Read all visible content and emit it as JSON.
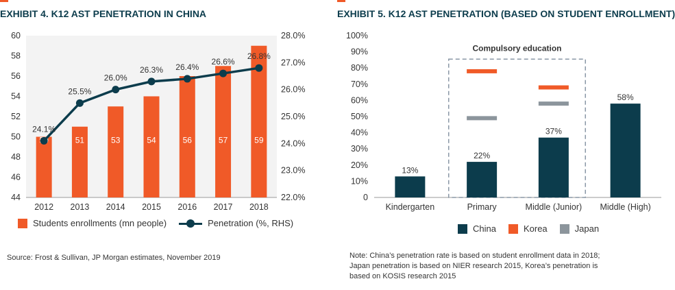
{
  "left": {
    "title": "EXHIBIT 4. K12 AST PENETRATION IN CHINA",
    "source": "Source: Frost & Sullivan, JP Morgan estimates, November 2019",
    "legend": {
      "bars": "Students enrollments (mn people)",
      "line": "Penetration (%, RHS)"
    }
  },
  "right": {
    "title": "EXHIBIT 5. K12 AST PENETRATION (BASED ON STUDENT ENROLLMENT)",
    "annotation": "Compulsory education",
    "legend": {
      "china": "China",
      "korea": "Korea",
      "japan": "Japan"
    },
    "note_lines": [
      "Note: China’s penetration rate is based on student enrollment data in 2018;",
      "Japan penetration is based on NIER research 2015, Korea’s penetration is",
      "based on KOSIS research 2015"
    ]
  },
  "colors": {
    "orange": "#f05a28",
    "navy": "#0c3c4c",
    "gray": "#8c959c",
    "plot_bg": "#f3f3f3",
    "title": "#0c3c4c"
  },
  "chart_data": [
    {
      "type": "bar",
      "combo_line": true,
      "categories": [
        "2012",
        "2013",
        "2014",
        "2015",
        "2016",
        "2017",
        "2018"
      ],
      "series": [
        {
          "name": "Students enrollments (mn people)",
          "axis": "left",
          "type": "bar",
          "values": [
            50,
            51,
            53,
            54,
            56,
            57,
            59
          ],
          "labels": [
            "50",
            "51",
            "53",
            "54",
            "56",
            "57",
            "59"
          ]
        },
        {
          "name": "Penetration (%, RHS)",
          "axis": "right",
          "type": "line",
          "values": [
            24.1,
            25.5,
            26.0,
            26.3,
            26.4,
            26.6,
            26.8
          ],
          "labels": [
            "24.1%",
            "25.5%",
            "26.0%",
            "26.3%",
            "26.4%",
            "26.6%",
            "26.8%"
          ]
        }
      ],
      "ylim_left": [
        44,
        60
      ],
      "yticks_left": [
        "44",
        "46",
        "48",
        "50",
        "52",
        "54",
        "56",
        "58",
        "60"
      ],
      "ylim_right": [
        22.0,
        28.0
      ],
      "yticks_right": [
        "22.0%",
        "23.0%",
        "24.0%",
        "25.0%",
        "26.0%",
        "27.0%",
        "28.0%"
      ],
      "grid": false
    },
    {
      "type": "bar",
      "categories": [
        "Kindergarten",
        "Primary",
        "Middle (Junior)",
        "Middle (High)"
      ],
      "series": [
        {
          "name": "China",
          "type": "bar",
          "values": [
            13,
            22,
            37,
            58
          ],
          "labels": [
            "13%",
            "22%",
            "37%",
            "58%"
          ]
        },
        {
          "name": "Korea",
          "type": "marker",
          "values": [
            null,
            78,
            68,
            null
          ]
        },
        {
          "name": "Japan",
          "type": "marker",
          "values": [
            null,
            49,
            58,
            null
          ]
        }
      ],
      "ylim": [
        0,
        100
      ],
      "yticks": [
        "0",
        "10%",
        "20%",
        "30%",
        "40%",
        "50%",
        "60%",
        "70%",
        "80%",
        "90%",
        "100%"
      ],
      "grid": false,
      "legend": "bottom"
    }
  ]
}
